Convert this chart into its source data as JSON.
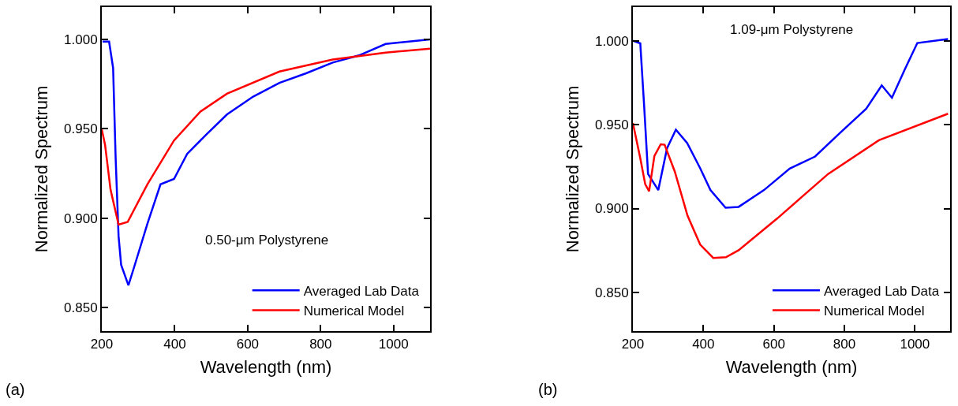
{
  "chart_data": [
    {
      "type": "line",
      "xlabel": "Wavelength (nm)",
      "ylabel": "Normalized Spectrum",
      "xlim": [
        200,
        1100
      ],
      "ylim": [
        0.837,
        1.018
      ],
      "xticks": [
        200,
        400,
        600,
        800,
        1000
      ],
      "yticks": [
        {
          "value": 0.85,
          "label": "0.850"
        },
        {
          "value": 0.9,
          "label": "0.900"
        },
        {
          "value": 0.95,
          "label": "0.950"
        },
        {
          "value": 1.0,
          "label": "1.000"
        }
      ],
      "legend": "bottom right",
      "line_style": "solid",
      "marker": "none",
      "annotations": [
        "0.50-μm Polystyrene",
        "(a)"
      ],
      "series": [
        {
          "name": "Averaged Lab Data",
          "color": "#0000ff",
          "x": [
            202,
            220,
            231,
            238,
            246,
            253,
            273,
            289,
            325,
            361,
            398,
            434,
            485,
            543,
            615,
            687,
            760,
            833,
            905,
            978,
            1100
          ],
          "values": [
            0.9987,
            0.9987,
            0.984,
            0.9335,
            0.89,
            0.874,
            0.8626,
            0.873,
            0.897,
            0.919,
            0.922,
            0.936,
            0.9465,
            0.958,
            0.968,
            0.9757,
            0.981,
            0.987,
            0.991,
            0.9974,
            1.0
          ]
        },
        {
          "name": "Numerical Model",
          "color": "#ff0000",
          "x": [
            200,
            209,
            224,
            246,
            271,
            325,
            398,
            470,
            543,
            687,
            833,
            978,
            1100
          ],
          "values": [
            0.9496,
            0.941,
            0.916,
            0.8965,
            0.898,
            0.919,
            0.9435,
            0.9596,
            0.9696,
            0.982,
            0.9887,
            0.9926,
            0.9948
          ]
        }
      ]
    },
    {
      "type": "line",
      "xlabel": "Wavelength (nm)",
      "ylabel": "Normalized Spectrum",
      "xlim": [
        200,
        1100
      ],
      "ylim": [
        0.827,
        1.02
      ],
      "xticks": [
        200,
        400,
        600,
        800,
        1000
      ],
      "yticks": [
        {
          "value": 0.85,
          "label": "0.850"
        },
        {
          "value": 0.9,
          "label": "0.900"
        },
        {
          "value": 0.95,
          "label": "0.950"
        },
        {
          "value": 1.0,
          "label": "1.000"
        }
      ],
      "legend": "bottom right",
      "line_style": "solid",
      "marker": "none",
      "annotations": [
        "1.09-μm Polystyrene",
        "(b)"
      ],
      "series": [
        {
          "name": "Averaged Lab Data",
          "color": "#0000ff",
          "x": [
            200,
            221,
            232,
            243,
            272,
            297,
            322,
            354,
            391,
            420,
            463,
            500,
            572,
            645,
            717,
            790,
            862,
            906,
            935,
            971,
            1007,
            1094
          ],
          "values": [
            1.0,
            0.9984,
            0.961,
            0.9206,
            0.911,
            0.936,
            0.947,
            0.939,
            0.924,
            0.911,
            0.9005,
            0.901,
            0.911,
            0.9238,
            0.931,
            0.9455,
            0.9595,
            0.9734,
            0.966,
            0.9827,
            0.9986,
            1.001
          ]
        },
        {
          "name": "Numerical Model",
          "color": "#ff0000",
          "x": [
            200,
            221,
            235,
            246,
            261,
            279,
            290,
            319,
            355,
            391,
            428,
            464,
            500,
            609,
            754,
            898,
            1094
          ],
          "values": [
            0.951,
            0.93,
            0.9145,
            0.9103,
            0.9313,
            0.9383,
            0.938,
            0.922,
            0.8958,
            0.8785,
            0.8706,
            0.871,
            0.8752,
            0.894,
            0.9206,
            0.9407,
            0.9565
          ]
        }
      ]
    }
  ]
}
